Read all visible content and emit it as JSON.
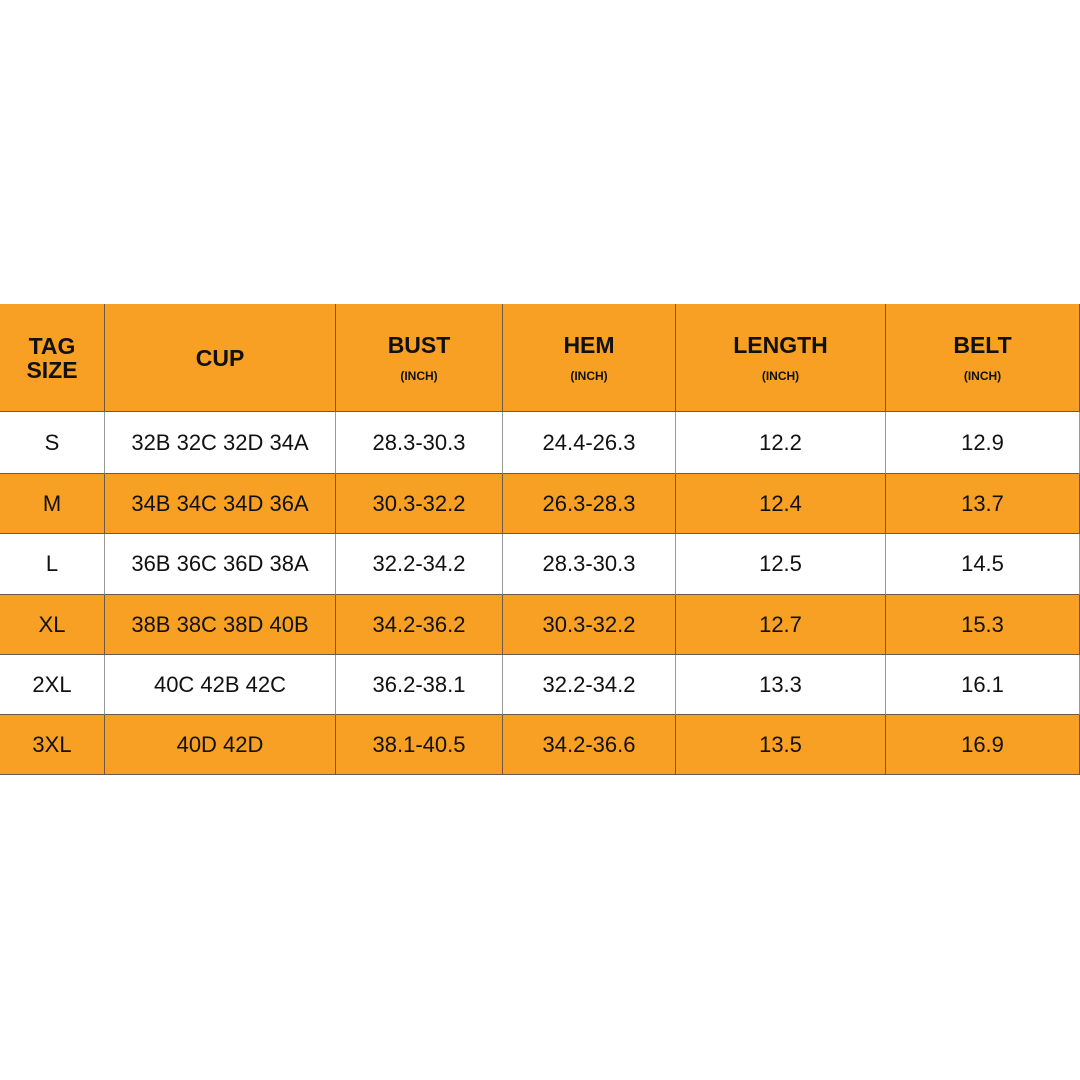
{
  "table": {
    "columns": [
      {
        "name": "TAG SIZE"
      },
      {
        "name": "CUP"
      },
      {
        "name": "BUST",
        "unit": "(INCH)"
      },
      {
        "name": "HEM",
        "unit": "(INCH)"
      },
      {
        "name": "LENGTH",
        "unit": "(INCH)"
      },
      {
        "name": "BELT",
        "unit": "(INCH)"
      }
    ],
    "rows": [
      [
        "S",
        "32B 32C 32D 34A",
        "28.3-30.3",
        "24.4-26.3",
        "12.2",
        "12.9"
      ],
      [
        "M",
        "34B 34C 34D 36A",
        "30.3-32.2",
        "26.3-28.3",
        "12.4",
        "13.7"
      ],
      [
        "L",
        "36B 36C 36D 38A",
        "32.2-34.2",
        "28.3-30.3",
        "12.5",
        "14.5"
      ],
      [
        "XL",
        "38B 38C 38D 40B",
        "34.2-36.2",
        "30.3-32.2",
        "12.7",
        "15.3"
      ],
      [
        "2XL",
        "40C 42B 42C",
        "36.2-38.1",
        "32.2-34.2",
        "13.3",
        "16.1"
      ],
      [
        "3XL",
        "40D 42D",
        "38.1-40.5",
        "34.2-36.6",
        "13.5",
        "16.9"
      ]
    ]
  }
}
